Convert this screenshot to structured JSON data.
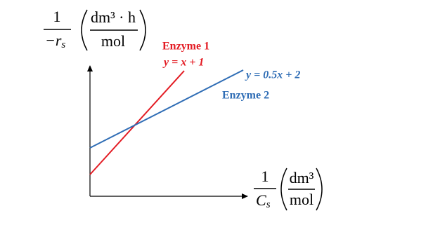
{
  "y_axis_label": {
    "numerator": "1",
    "denominator": "−r",
    "denominator_subscript": "s",
    "unit_numerator": "dm³ · h",
    "unit_denominator": "mol"
  },
  "x_axis_label": {
    "numerator": "1",
    "denominator": "C",
    "denominator_subscript": "s",
    "unit_numerator": "dm³",
    "unit_denominator": "mol"
  },
  "lines": [
    {
      "name": "Enzyme 1",
      "equation": "y = x + 1",
      "color": "#e31b23"
    },
    {
      "name": "Enzyme 2",
      "equation": "y = 0.5x + 2",
      "color": "#2f6db5"
    }
  ]
}
